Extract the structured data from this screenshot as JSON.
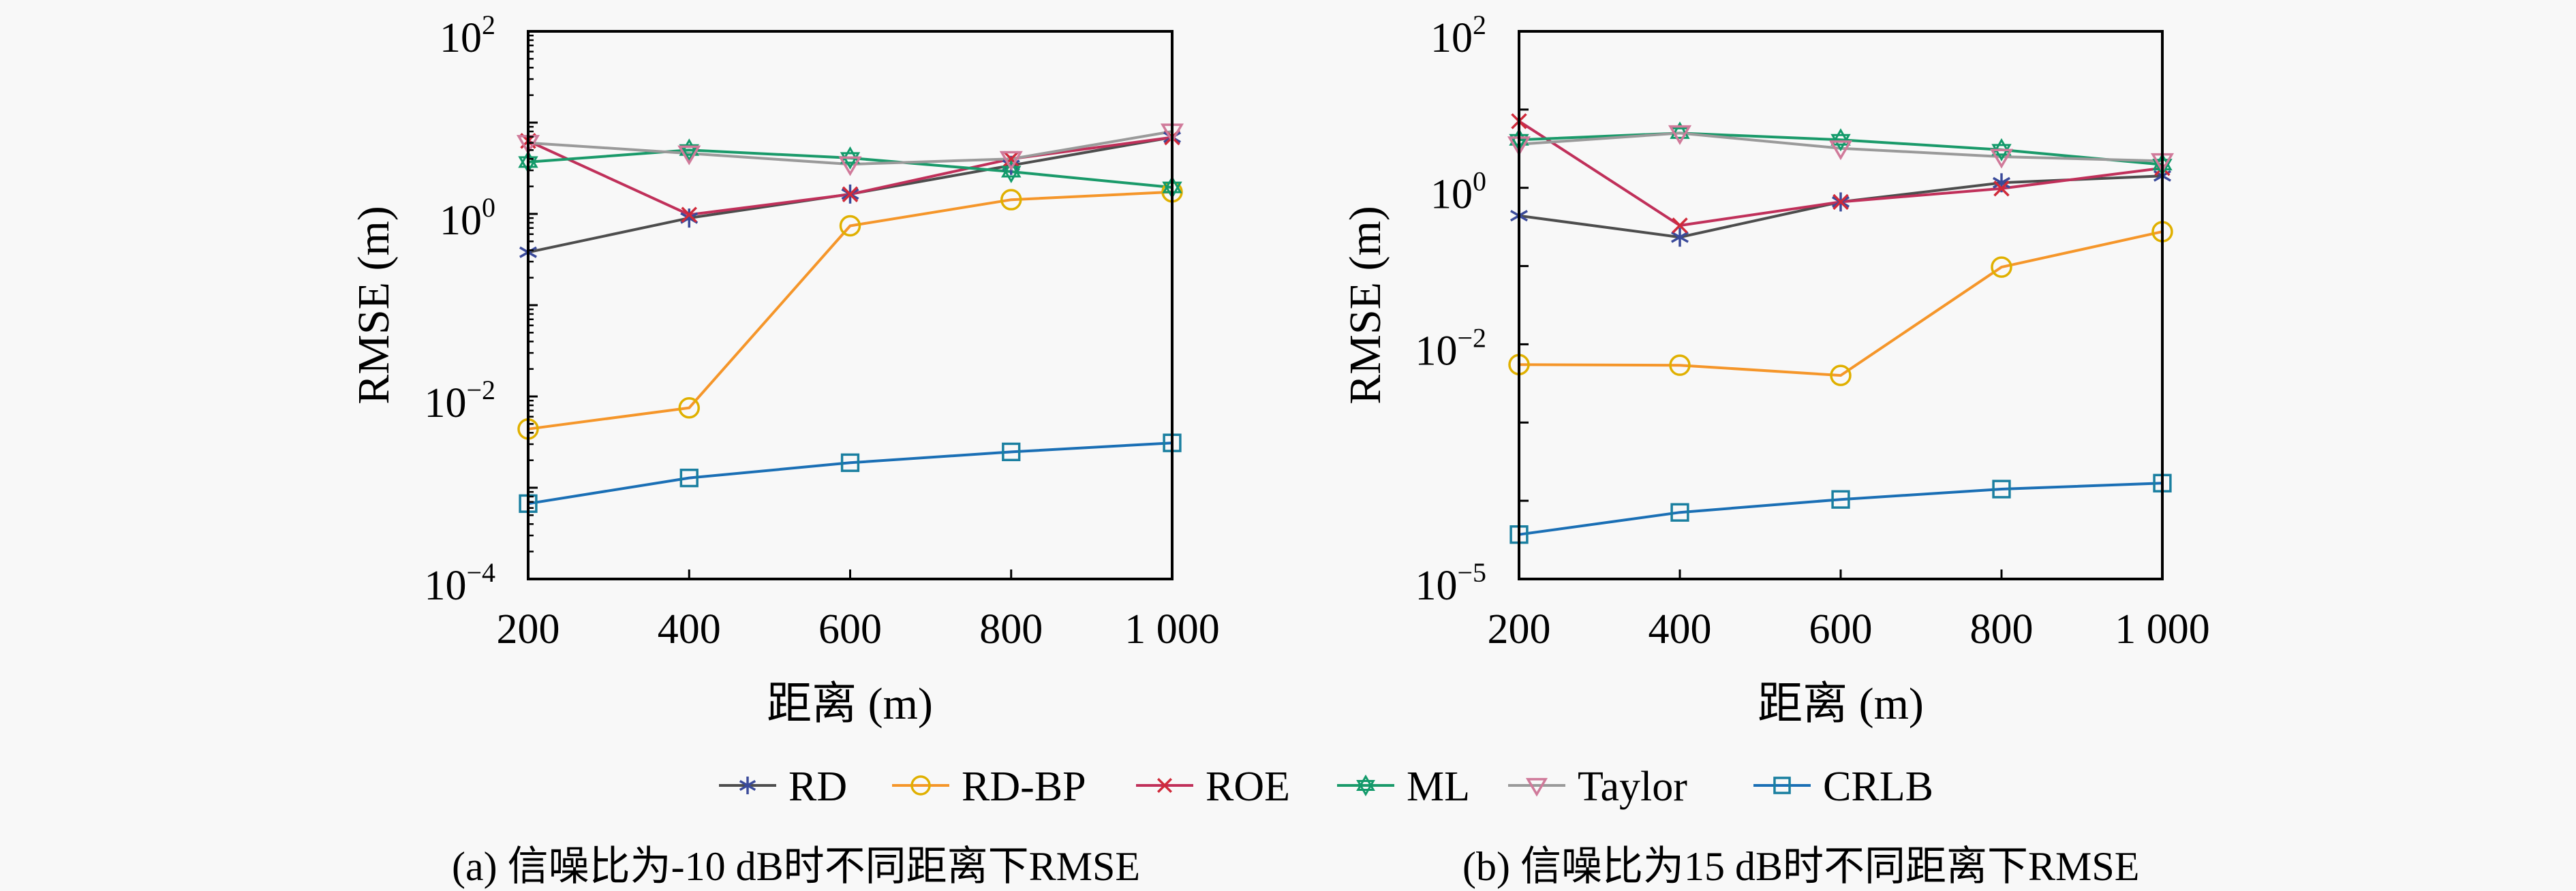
{
  "chart_data": [
    {
      "type": "line",
      "id": "a",
      "yscale": "log",
      "xlabel": "距离 (m)",
      "ylabel": "RMSE (m)",
      "x": [
        200,
        400,
        600,
        800,
        1000
      ],
      "x_tick_labels": [
        "200",
        "400",
        "600",
        "800",
        "1 000"
      ],
      "xlim": [
        200,
        1000
      ],
      "ylim": [
        0.0001,
        100
      ],
      "y_ticks": [
        {
          "base": "10",
          "exp": "2",
          "value": 100
        },
        {
          "base": "10",
          "exp": "0",
          "value": 1
        },
        {
          "base": "10",
          "exp": "−2",
          "value": 0.01
        },
        {
          "base": "10",
          "exp": "−4",
          "value": 0.0001
        }
      ],
      "minor_ticks": true,
      "grid": false,
      "caption": "(a) 信噪比为-10 dB时不同距离下RMSE",
      "series": [
        {
          "name": "RD",
          "values": [
            0.38,
            0.9,
            1.65,
            3.4,
            6.9
          ]
        },
        {
          "name": "RD-BP",
          "values": [
            0.0044,
            0.0075,
            0.74,
            1.43,
            1.74
          ]
        },
        {
          "name": "ROE",
          "values": [
            6.3,
            0.98,
            1.64,
            4.0,
            6.9
          ]
        },
        {
          "name": "ML",
          "values": [
            3.7,
            5.0,
            4.1,
            2.9,
            1.95
          ]
        },
        {
          "name": "Taylor",
          "values": [
            6.0,
            4.6,
            3.5,
            4.0,
            8.0
          ]
        },
        {
          "name": "CRLB",
          "values": [
            0.00067,
            0.00128,
            0.00188,
            0.00247,
            0.0031
          ]
        }
      ]
    },
    {
      "type": "line",
      "id": "b",
      "yscale": "log",
      "xlabel": "距离 (m)",
      "ylabel": "RMSE (m)",
      "x": [
        200,
        400,
        600,
        800,
        1000
      ],
      "x_tick_labels": [
        "200",
        "400",
        "600",
        "800",
        "1 000"
      ],
      "xlim": [
        200,
        1000
      ],
      "ylim": [
        1e-05,
        100
      ],
      "y_ticks": [
        {
          "base": "10",
          "exp": "2",
          "value": 100
        },
        {
          "base": "10",
          "exp": "0",
          "value": 1
        },
        {
          "base": "10",
          "exp": "−2",
          "value": 0.01
        },
        {
          "base": "10",
          "exp": "−5",
          "value": 1e-05
        }
      ],
      "minor_ticks": false,
      "grid": false,
      "caption": "(b) 信噪比为15 dB时不同距离下RMSE",
      "series": [
        {
          "name": "RD",
          "values": [
            0.44,
            0.234,
            0.66,
            1.16,
            1.42
          ]
        },
        {
          "name": "RD-BP",
          "values": [
            0.0055,
            0.0054,
            0.004,
            0.097,
            0.275
          ]
        },
        {
          "name": "ROE",
          "values": [
            7.1,
            0.33,
            0.66,
            0.98,
            1.79
          ]
        },
        {
          "name": "ML",
          "values": [
            4.1,
            5.0,
            4.1,
            3.06,
            1.98
          ]
        },
        {
          "name": "Taylor",
          "values": [
            3.6,
            5.0,
            3.2,
            2.5,
            2.2
          ]
        },
        {
          "name": "CRLB",
          "values": [
            3.7e-05,
            7.1e-05,
            0.000104,
            0.000141,
            0.000168
          ]
        }
      ]
    }
  ],
  "legend": {
    "placement": "bottom-center",
    "items": [
      {
        "name": "RD",
        "marker": "asterisk",
        "line_color": "#4d4d4d",
        "marker_color": "#3a4a9a"
      },
      {
        "name": "RD-BP",
        "marker": "circle",
        "line_color": "#f5962a",
        "marker_color": "#e0b000"
      },
      {
        "name": "ROE",
        "marker": "cross",
        "line_color": "#c0305a",
        "marker_color": "#d02a3a"
      },
      {
        "name": "ML",
        "marker": "hexagram",
        "line_color": "#1a9a6a",
        "marker_color": "#129a6a"
      },
      {
        "name": "Taylor",
        "marker": "triangle-down",
        "line_color": "#9a9a9a",
        "marker_color": "#d07a9a"
      },
      {
        "name": "CRLB",
        "marker": "square",
        "line_color": "#1a6fb5",
        "marker_color": "#1a7fa0"
      }
    ]
  },
  "colors": {
    "background": "#f8f8f8",
    "axis": "#000000"
  }
}
